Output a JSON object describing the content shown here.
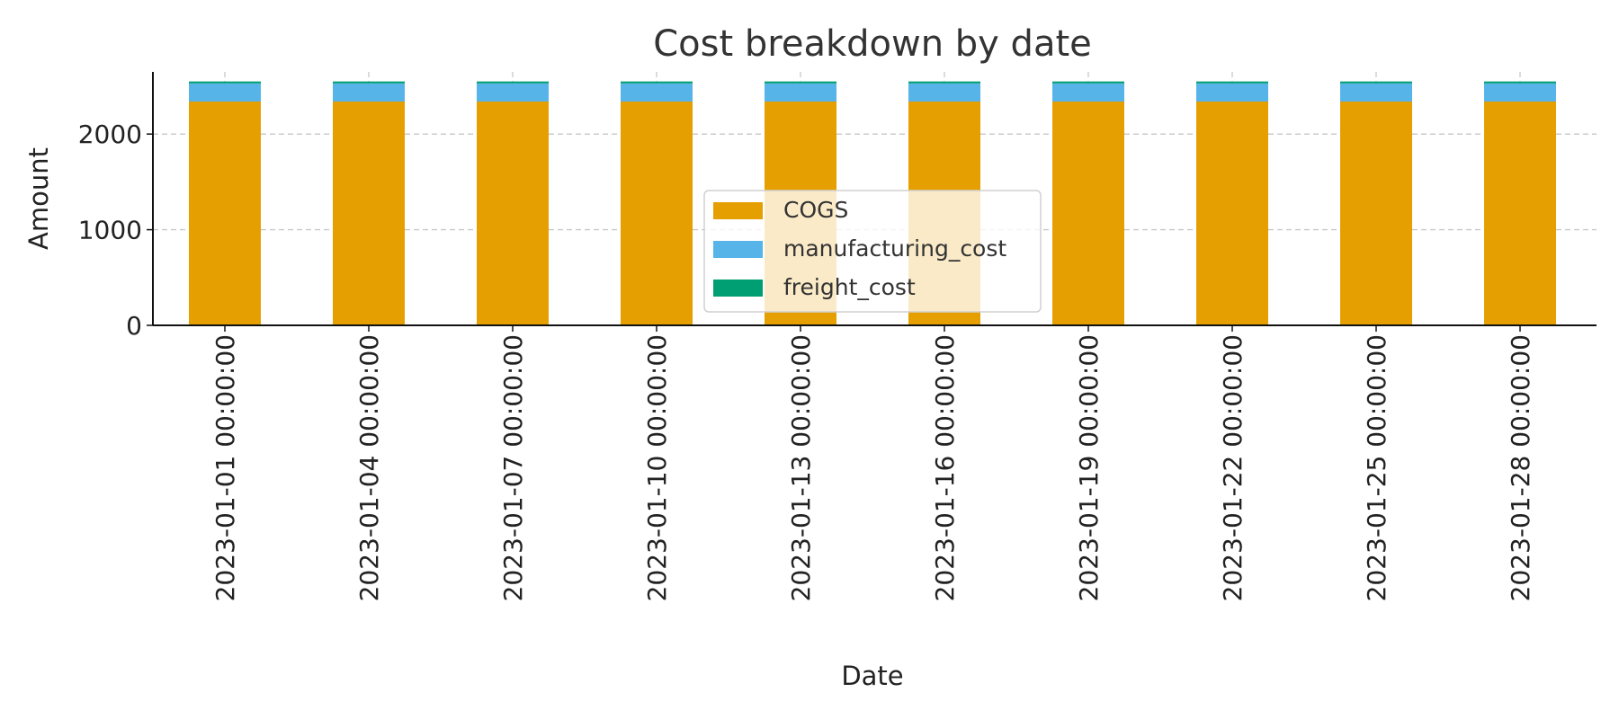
{
  "chart_data": {
    "type": "bar",
    "stacked": true,
    "title": "Cost breakdown by date",
    "xlabel": "Date",
    "ylabel": "Amount",
    "ylim": [
      0,
      2650
    ],
    "yticks": [
      0,
      1000,
      2000
    ],
    "grid": true,
    "legend_position": "center",
    "categories": [
      "2023-01-01 00:00:00",
      "2023-01-04 00:00:00",
      "2023-01-07 00:00:00",
      "2023-01-10 00:00:00",
      "2023-01-13 00:00:00",
      "2023-01-16 00:00:00",
      "2023-01-19 00:00:00",
      "2023-01-22 00:00:00",
      "2023-01-25 00:00:00",
      "2023-01-28 00:00:00"
    ],
    "series": [
      {
        "name": "COGS",
        "color": "#E69F00",
        "values": [
          2340,
          2340,
          2340,
          2340,
          2340,
          2340,
          2340,
          2340,
          2340,
          2340
        ]
      },
      {
        "name": "manufacturing_cost",
        "color": "#56B4E9",
        "values": [
          190,
          190,
          190,
          190,
          190,
          190,
          190,
          190,
          190,
          190
        ]
      },
      {
        "name": "freight_cost",
        "color": "#009E73",
        "values": [
          20,
          20,
          20,
          20,
          20,
          20,
          20,
          20,
          20,
          20
        ]
      }
    ]
  }
}
